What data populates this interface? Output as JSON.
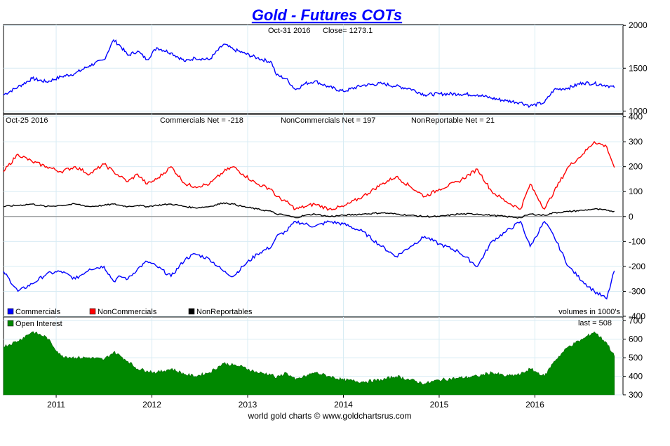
{
  "chart_data": {
    "type": "line",
    "title": "Gold - Futures COTs",
    "footer": "world gold charts © www.goldchartsrus.com",
    "x_axis": {
      "range": [
        2010.45,
        2016.92
      ],
      "tick_labels": [
        "2011",
        "2012",
        "2013",
        "2014",
        "2015",
        "2016"
      ],
      "tick_values": [
        2011,
        2012,
        2013,
        2014,
        2015,
        2016
      ]
    },
    "price_panel": {
      "date_label": "Oct-31  2016",
      "close_label": "Close= 1273.1",
      "ylim": [
        970,
        2010
      ],
      "y_ticks": [
        1000,
        1500,
        2000
      ],
      "y_tick_labels": [
        "1000",
        "1500",
        "2000"
      ],
      "color": "#0000ff",
      "x": [
        2010.45,
        2010.6,
        2010.75,
        2010.9,
        2011.05,
        2011.2,
        2011.35,
        2011.5,
        2011.6,
        2011.67,
        2011.75,
        2011.85,
        2011.95,
        2012.05,
        2012.2,
        2012.35,
        2012.45,
        2012.6,
        2012.75,
        2012.85,
        2012.95,
        2013.1,
        2013.25,
        2013.3,
        2013.4,
        2013.5,
        2013.6,
        2013.7,
        2013.85,
        2014.0,
        2014.2,
        2014.4,
        2014.55,
        2014.7,
        2014.85,
        2015.0,
        2015.2,
        2015.4,
        2015.55,
        2015.7,
        2015.85,
        2015.95,
        2016.1,
        2016.2,
        2016.35,
        2016.5,
        2016.62,
        2016.75,
        2016.83
      ],
      "y": [
        1190,
        1280,
        1380,
        1340,
        1400,
        1440,
        1530,
        1600,
        1830,
        1760,
        1650,
        1700,
        1600,
        1740,
        1680,
        1580,
        1620,
        1600,
        1780,
        1720,
        1680,
        1620,
        1570,
        1420,
        1380,
        1250,
        1320,
        1350,
        1280,
        1230,
        1300,
        1320,
        1290,
        1260,
        1190,
        1200,
        1200,
        1190,
        1150,
        1120,
        1100,
        1060,
        1100,
        1250,
        1270,
        1330,
        1320,
        1300,
        1273
      ]
    },
    "cot_panel": {
      "date_label": "Oct-25  2016",
      "summary": [
        "Commercials Net = -218",
        "NonCommercials Net = 197",
        "NonReportable Net = 21"
      ],
      "ylim": [
        -400,
        410
      ],
      "y_ticks": [
        400,
        300,
        200,
        100,
        0,
        -100,
        -200,
        -300,
        -400
      ],
      "y_tick_labels": [
        "400",
        "300",
        "200",
        "100",
        "0",
        "-100",
        "-200",
        "-300",
        "-400"
      ],
      "units_label": "volumes in 1000's",
      "legend": [
        {
          "name": "Commercials",
          "color": "#0000ff"
        },
        {
          "name": "NonCommercials",
          "color": "#ff0000"
        },
        {
          "name": "NonReportables",
          "color": "#000000"
        }
      ],
      "x": [
        2010.45,
        2010.6,
        2010.75,
        2010.9,
        2011.05,
        2011.2,
        2011.35,
        2011.5,
        2011.6,
        2011.67,
        2011.75,
        2011.85,
        2011.95,
        2012.05,
        2012.2,
        2012.35,
        2012.45,
        2012.6,
        2012.75,
        2012.85,
        2012.95,
        2013.1,
        2013.25,
        2013.3,
        2013.4,
        2013.5,
        2013.6,
        2013.7,
        2013.85,
        2014.0,
        2014.2,
        2014.4,
        2014.55,
        2014.7,
        2014.85,
        2015.0,
        2015.2,
        2015.4,
        2015.55,
        2015.7,
        2015.85,
        2015.95,
        2016.1,
        2016.2,
        2016.35,
        2016.5,
        2016.62,
        2016.75,
        2016.83
      ],
      "series": [
        {
          "name": "Commercials",
          "color": "#0000ff",
          "values": [
            -220,
            -300,
            -270,
            -230,
            -220,
            -250,
            -210,
            -200,
            -260,
            -240,
            -250,
            -210,
            -180,
            -200,
            -240,
            -170,
            -150,
            -170,
            -220,
            -240,
            -200,
            -150,
            -120,
            -80,
            -60,
            -20,
            -30,
            -40,
            -20,
            -30,
            -60,
            -120,
            -160,
            -120,
            -80,
            -110,
            -140,
            -200,
            -100,
            -60,
            -20,
            -120,
            -20,
            -80,
            -200,
            -260,
            -300,
            -330,
            -218
          ]
        },
        {
          "name": "NonCommercials",
          "color": "#ff0000",
          "values": [
            180,
            250,
            220,
            200,
            180,
            200,
            170,
            210,
            180,
            160,
            140,
            170,
            130,
            150,
            200,
            130,
            120,
            130,
            180,
            200,
            170,
            130,
            110,
            80,
            60,
            30,
            40,
            50,
            30,
            40,
            80,
            130,
            160,
            120,
            80,
            110,
            140,
            190,
            100,
            60,
            30,
            130,
            30,
            100,
            200,
            250,
            300,
            280,
            197
          ]
        },
        {
          "name": "NonReportables",
          "color": "#000000",
          "values": [
            40,
            45,
            50,
            40,
            45,
            50,
            40,
            45,
            50,
            45,
            40,
            45,
            40,
            45,
            50,
            40,
            35,
            40,
            55,
            50,
            40,
            30,
            20,
            10,
            5,
            -5,
            5,
            10,
            0,
            5,
            10,
            15,
            10,
            5,
            0,
            0,
            10,
            10,
            5,
            0,
            -5,
            10,
            5,
            15,
            20,
            25,
            30,
            25,
            21
          ]
        }
      ]
    },
    "oi_panel": {
      "legend_label": "Open Interest",
      "last_label": "last = 508",
      "color": "#008800",
      "ylim": [
        300,
        720
      ],
      "y_ticks": [
        700,
        600,
        500,
        400,
        300
      ],
      "y_tick_labels": [
        "700",
        "600",
        "500",
        "400",
        "300"
      ],
      "x": [
        2010.45,
        2010.6,
        2010.75,
        2010.9,
        2011.05,
        2011.2,
        2011.35,
        2011.5,
        2011.6,
        2011.67,
        2011.75,
        2011.85,
        2011.95,
        2012.05,
        2012.2,
        2012.35,
        2012.45,
        2012.6,
        2012.75,
        2012.85,
        2012.95,
        2013.1,
        2013.25,
        2013.3,
        2013.4,
        2013.5,
        2013.6,
        2013.7,
        2013.85,
        2014.0,
        2014.2,
        2014.4,
        2014.55,
        2014.7,
        2014.85,
        2015.0,
        2015.2,
        2015.4,
        2015.55,
        2015.7,
        2015.85,
        2015.95,
        2016.1,
        2016.2,
        2016.35,
        2016.5,
        2016.62,
        2016.75,
        2016.83
      ],
      "values": [
        560,
        590,
        640,
        610,
        510,
        500,
        500,
        490,
        530,
        510,
        480,
        440,
        430,
        420,
        440,
        410,
        400,
        420,
        470,
        460,
        450,
        420,
        410,
        390,
        420,
        380,
        400,
        420,
        400,
        380,
        370,
        380,
        400,
        380,
        360,
        380,
        390,
        400,
        420,
        400,
        410,
        440,
        400,
        480,
        560,
        600,
        640,
        580,
        508
      ]
    }
  }
}
